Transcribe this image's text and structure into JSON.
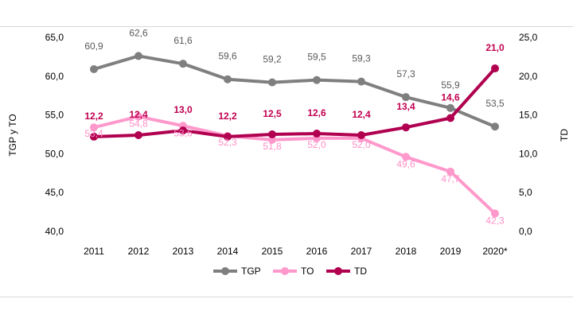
{
  "chart_data": {
    "type": "line",
    "title": "",
    "categories": [
      "2011",
      "2012",
      "2013",
      "2014",
      "2015",
      "2016",
      "2017",
      "2018",
      "2019",
      "2020*"
    ],
    "y_left": {
      "label": "TGP y TO",
      "ylim": [
        40,
        65
      ],
      "ticks": [
        "40,0",
        "45,0",
        "50,0",
        "55,0",
        "60,0",
        "65,0"
      ],
      "tick_values": [
        40,
        45,
        50,
        55,
        60,
        65
      ]
    },
    "y_right": {
      "label": "TD",
      "ylim": [
        0,
        25
      ],
      "ticks": [
        "0,0",
        "5,0",
        "10,0",
        "15,0",
        "20,0",
        "25,0"
      ],
      "tick_values": [
        0,
        5,
        10,
        15,
        20,
        25
      ]
    },
    "series": [
      {
        "name": "TGP",
        "axis": "left",
        "color": "#7f7f7f",
        "label_color": "#595959",
        "values": [
          60.9,
          62.6,
          61.6,
          59.6,
          59.2,
          59.5,
          59.3,
          57.3,
          55.9,
          53.5
        ],
        "labels": [
          "60,9",
          "62,6",
          "61,6",
          "59,6",
          "59,2",
          "59,5",
          "59,3",
          "57,3",
          "55,9",
          "53,5"
        ]
      },
      {
        "name": "TO",
        "axis": "left",
        "color": "#ff99cc",
        "label_color": "#ff8fc7",
        "values": [
          53.4,
          54.8,
          53.6,
          52.3,
          51.8,
          52.0,
          52.0,
          49.6,
          47.7,
          42.3
        ],
        "labels": [
          "53,4",
          "54,8",
          "53,6",
          "52,3",
          "51,8",
          "52,0",
          "52,0",
          "49,6",
          "47,7",
          "42,3"
        ]
      },
      {
        "name": "TD",
        "axis": "right",
        "color": "#b0004f",
        "label_color": "#c00050",
        "values": [
          12.2,
          12.4,
          13.0,
          12.2,
          12.5,
          12.6,
          12.4,
          13.4,
          14.6,
          21.0
        ],
        "labels": [
          "12,2",
          "12,4",
          "13,0",
          "12,2",
          "12,5",
          "12,6",
          "12,4",
          "13,4",
          "14,6",
          "21,0"
        ]
      }
    ],
    "legend": {
      "placement": "bottom-center",
      "items": [
        "TGP",
        "TO",
        "TD"
      ]
    },
    "grid": false
  }
}
